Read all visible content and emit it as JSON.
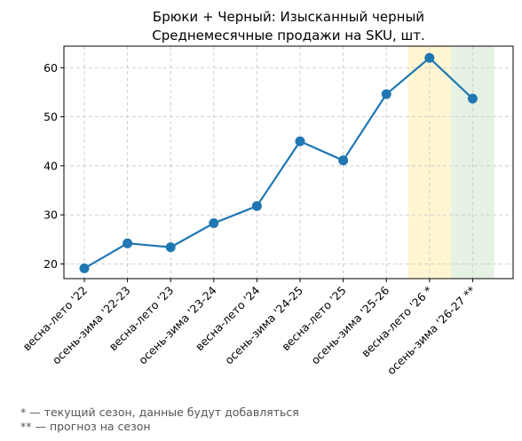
{
  "chart_data": {
    "type": "line",
    "title_lines": [
      "Брюки + Черный: Изысканный черный",
      "Среднемесячные продажи на SKU, шт."
    ],
    "xlabel": "",
    "ylabel": "",
    "categories": [
      "весна-лето '22",
      "осень-зима '22-23",
      "весна-лето '23",
      "осень-зима '23-24",
      "весна-лето '24",
      "осень-зима '24-25",
      "весна-лето '25",
      "осень-зима '25-26",
      "весна-лето '26 *",
      "осень-зима '26-27 **"
    ],
    "series": [
      {
        "values": [
          19.1,
          24.2,
          23.4,
          28.3,
          31.8,
          45.0,
          41.1,
          54.6,
          62.0,
          53.7
        ]
      }
    ],
    "ylim": [
      17,
      64.4
    ],
    "yticks": [
      20,
      30,
      40,
      50,
      60
    ],
    "grid": true,
    "line_color": "#1f77b4",
    "highlights": [
      {
        "category_index": 8,
        "meaning": "current season",
        "color": "#fff5cc"
      },
      {
        "category_index": 9,
        "meaning": "forecast",
        "color": "#e3f1e1"
      }
    ],
    "footnotes": [
      "* — текущий сезон, данные будут добавляться",
      "** — прогноз на сезон"
    ]
  }
}
